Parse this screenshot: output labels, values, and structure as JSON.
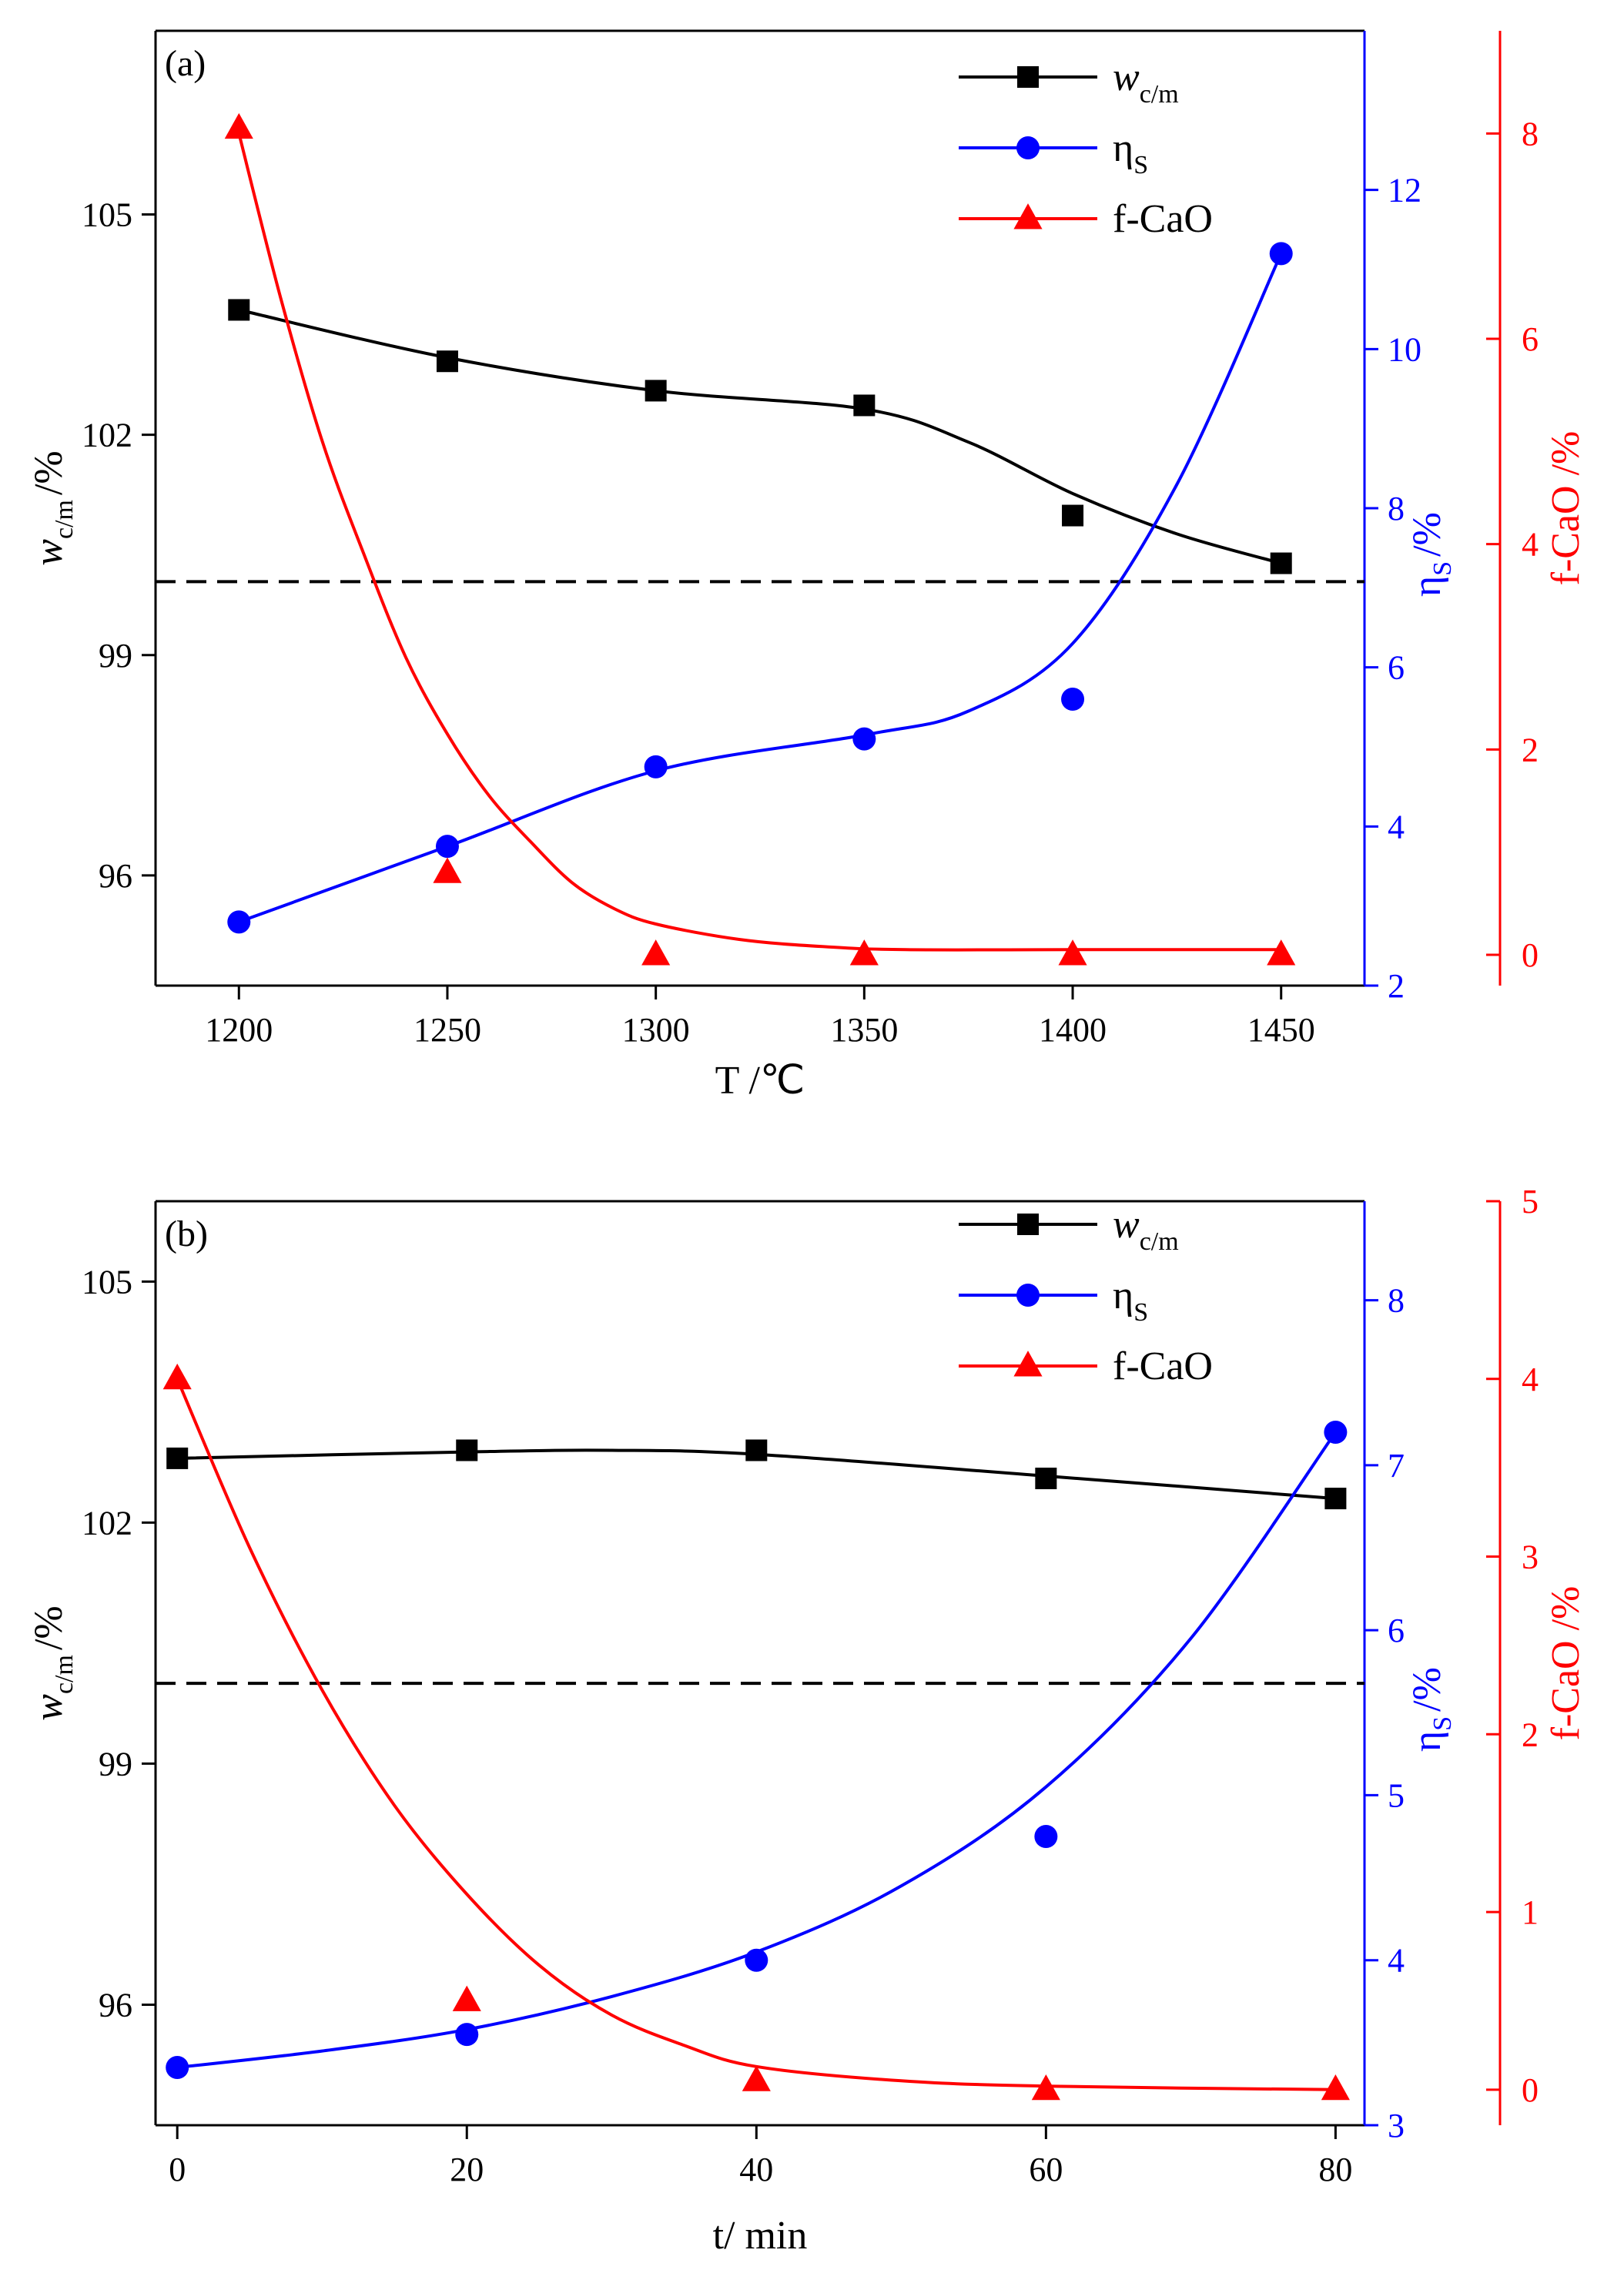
{
  "figure": {
    "panels": [
      "(a)",
      "(b)"
    ]
  },
  "colors": {
    "w": "#000000",
    "eta": "#0000ff",
    "fcao": "#ff0000",
    "axis": "#000000",
    "reference": "#000000"
  },
  "chart_data": [
    {
      "type": "scatter",
      "panel_label": "(a)",
      "xlabel": "T /℃",
      "x": [
        1200,
        1250,
        1300,
        1350,
        1400,
        1450
      ],
      "xlim": [
        1180,
        1470
      ],
      "xticks": [
        1200,
        1250,
        1300,
        1350,
        1400,
        1450
      ],
      "reference_line": {
        "axis": "left",
        "value": 100
      },
      "legend": {
        "position": "top-right"
      },
      "series": [
        {
          "id": "w",
          "name": "w_c/m",
          "name_main": "w",
          "name_sub": "c/m",
          "axis": "left",
          "marker": "square",
          "values": [
            103.7,
            103.0,
            102.6,
            102.4,
            100.9,
            100.25
          ],
          "fit": [
            [
              1200,
              103.7
            ],
            [
              1250,
              103.05
            ],
            [
              1300,
              102.6
            ],
            [
              1350,
              102.35
            ],
            [
              1375,
              101.9
            ],
            [
              1400,
              101.2
            ],
            [
              1425,
              100.65
            ],
            [
              1450,
              100.25
            ]
          ]
        },
        {
          "id": "eta",
          "name": "ηS",
          "name_main": "η",
          "name_sub": "S",
          "axis": "right1",
          "marker": "circle",
          "values": [
            2.8,
            3.75,
            4.75,
            5.1,
            5.6,
            11.2
          ],
          "fit": [
            [
              1200,
              2.8
            ],
            [
              1250,
              3.75
            ],
            [
              1300,
              4.7
            ],
            [
              1350,
              5.15
            ],
            [
              1375,
              5.45
            ],
            [
              1400,
              6.3
            ],
            [
              1425,
              8.3
            ],
            [
              1450,
              11.2
            ]
          ]
        },
        {
          "id": "fcao",
          "name": "f-CaO",
          "name_main": "f-CaO",
          "name_sub": "",
          "axis": "right2",
          "marker": "triangle",
          "values": [
            8.05,
            0.8,
            0.0,
            0.0,
            0.0,
            0.0
          ],
          "fit": [
            [
              1200,
              8.0
            ],
            [
              1210,
              6.4
            ],
            [
              1220,
              5.0
            ],
            [
              1230,
              3.9
            ],
            [
              1240,
              2.9
            ],
            [
              1250,
              2.15
            ],
            [
              1260,
              1.55
            ],
            [
              1270,
              1.1
            ],
            [
              1280,
              0.7
            ],
            [
              1290,
              0.45
            ],
            [
              1300,
              0.3
            ],
            [
              1320,
              0.15
            ],
            [
              1340,
              0.08
            ],
            [
              1360,
              0.05
            ],
            [
              1400,
              0.05
            ],
            [
              1450,
              0.05
            ]
          ]
        }
      ],
      "axes": {
        "left": {
          "label_main": "w",
          "label_sub": "c/m",
          "label_unit": "/%",
          "range": [
            94.5,
            107.5
          ],
          "ticks": [
            96,
            99,
            102,
            105
          ]
        },
        "right1": {
          "label_main": "η",
          "label_sub": "S",
          "label_unit": "/%",
          "range": [
            2,
            14
          ],
          "ticks": [
            2,
            4,
            6,
            8,
            10,
            12
          ]
        },
        "right2": {
          "label": "f-CaO /%",
          "range": [
            -0.3,
            9.0
          ],
          "ticks": [
            0,
            2,
            4,
            6,
            8
          ]
        }
      }
    },
    {
      "type": "scatter",
      "panel_label": "(b)",
      "xlabel": "t/ min",
      "x": [
        0,
        20,
        40,
        60,
        80
      ],
      "xlim": [
        -1.5,
        82
      ],
      "xticks": [
        0,
        20,
        40,
        60,
        80
      ],
      "reference_line": {
        "axis": "left",
        "value": 100
      },
      "legend": {
        "position": "top-right"
      },
      "series": [
        {
          "id": "w",
          "name": "w_c/m",
          "name_main": "w",
          "name_sub": "c/m",
          "axis": "left",
          "marker": "square",
          "values": [
            102.8,
            102.9,
            102.9,
            102.55,
            102.3
          ],
          "fit": [
            [
              0,
              102.8
            ],
            [
              20,
              102.88
            ],
            [
              30,
              102.9
            ],
            [
              40,
              102.85
            ],
            [
              60,
              102.58
            ],
            [
              80,
              102.3
            ]
          ]
        },
        {
          "id": "eta",
          "name": "ηS",
          "name_main": "η",
          "name_sub": "S",
          "axis": "right1",
          "marker": "circle",
          "values": [
            3.35,
            3.55,
            4.0,
            4.75,
            7.2
          ],
          "fit": [
            [
              0,
              3.35
            ],
            [
              10,
              3.45
            ],
            [
              20,
              3.58
            ],
            [
              30,
              3.78
            ],
            [
              40,
              4.05
            ],
            [
              50,
              4.45
            ],
            [
              60,
              5.05
            ],
            [
              70,
              5.95
            ],
            [
              80,
              7.2
            ]
          ]
        },
        {
          "id": "fcao",
          "name": "f-CaO",
          "name_main": "f-CaO",
          "name_sub": "",
          "axis": "right2",
          "marker": "triangle",
          "values": [
            4.0,
            0.5,
            0.05,
            0.0,
            0.0
          ],
          "fit": [
            [
              0,
              4.0
            ],
            [
              5,
              3.05
            ],
            [
              10,
              2.25
            ],
            [
              15,
              1.6
            ],
            [
              20,
              1.1
            ],
            [
              25,
              0.7
            ],
            [
              30,
              0.42
            ],
            [
              35,
              0.25
            ],
            [
              40,
              0.13
            ],
            [
              50,
              0.05
            ],
            [
              60,
              0.02
            ],
            [
              80,
              0.0
            ]
          ]
        }
      ],
      "axes": {
        "left": {
          "label_main": "w",
          "label_sub": "c/m",
          "label_unit": "/%",
          "range": [
            94.5,
            106
          ],
          "ticks": [
            96,
            99,
            102,
            105
          ]
        },
        "right1": {
          "label_main": "η",
          "label_sub": "S",
          "label_unit": "/%",
          "range": [
            3,
            8.6
          ],
          "ticks": [
            3,
            4,
            5,
            6,
            7,
            8
          ]
        },
        "right2": {
          "label": "f-CaO /%",
          "range": [
            -0.2,
            5.0
          ],
          "ticks": [
            0,
            1,
            2,
            3,
            4,
            5
          ]
        }
      }
    }
  ]
}
